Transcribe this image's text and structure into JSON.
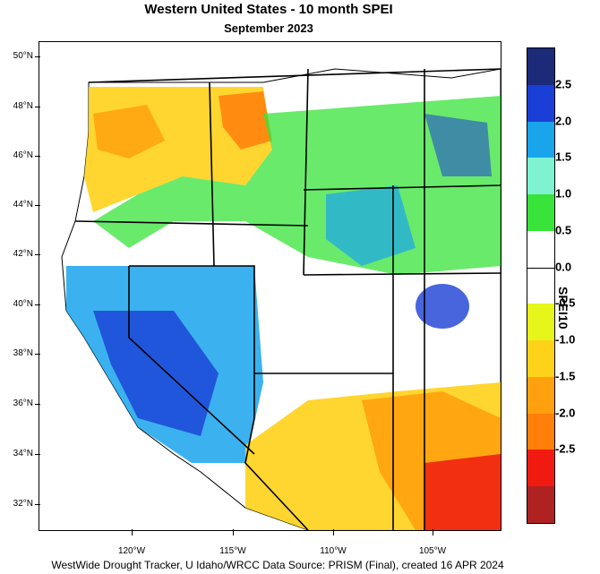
{
  "header": {
    "title": "Western United States - 10 month SPEI",
    "subtitle": "September 2023"
  },
  "footer": {
    "credit": "WestWide Drought Tracker, U Idaho/WRCC Data Source: PRISM (Final), created 16 APR 2024"
  },
  "axes": {
    "latitudes": [
      "50°N",
      "48°N",
      "46°N",
      "44°N",
      "42°N",
      "40°N",
      "38°N",
      "36°N",
      "34°N",
      "32°N"
    ],
    "longitudes": [
      "120°W",
      "115°W",
      "110°W",
      "105°W"
    ]
  },
  "colorbar": {
    "label": "SPEI10",
    "ticks": [
      "2.5",
      "2.0",
      "1.5",
      "1.0",
      "0.5",
      "0.0",
      "-0.5",
      "-1.0",
      "-1.5",
      "-2.0",
      "-2.5"
    ],
    "colors": [
      "#1c2a7a",
      "#1a3fd6",
      "#19a5ec",
      "#7ff2d2",
      "#38e33a",
      "#ffffff",
      "#ffffff",
      "#e6f51a",
      "#ffd21a",
      "#ffa10e",
      "#ff7f0a",
      "#f01a10",
      "#b02222"
    ]
  },
  "map_regions": [
    {
      "name": "pacific-northwest-dry",
      "color": "#ffa10e"
    },
    {
      "name": "interior-wet",
      "color": "#19a5ec"
    },
    {
      "name": "southwest-dry",
      "color": "#f01a10"
    }
  ]
}
